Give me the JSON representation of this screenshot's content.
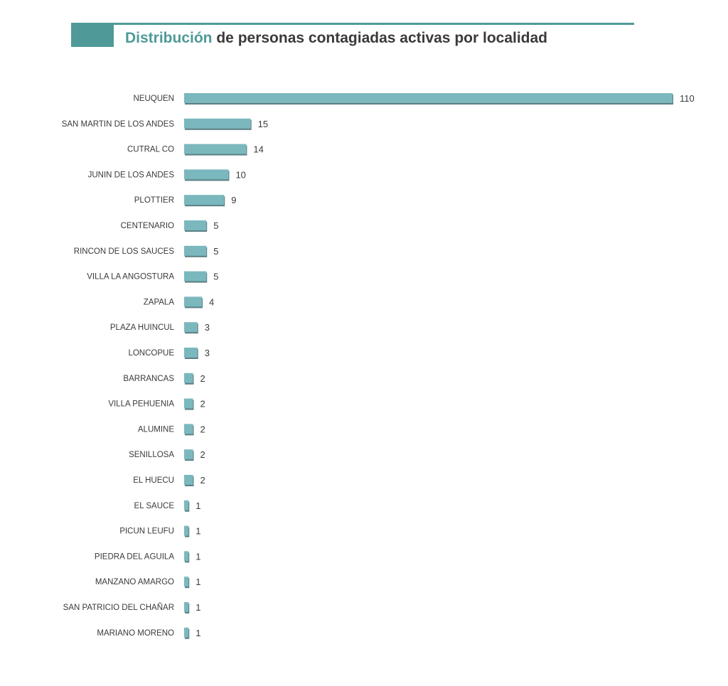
{
  "header": {
    "title_accent": "Distribución",
    "title_rest": " de personas contagiadas activas por localidad"
  },
  "colors": {
    "bar": "#7ab8be",
    "bar_shadow": "#5b7f84",
    "accent": "#4f9a98"
  },
  "chart_data": {
    "type": "bar",
    "orientation": "horizontal",
    "title": "Distribución de personas contagiadas activas por localidad",
    "categories": [
      "NEUQUEN",
      "SAN MARTIN DE LOS ANDES",
      "CUTRAL CO",
      "JUNIN DE LOS ANDES",
      "PLOTTIER",
      "CENTENARIO",
      "RINCON DE LOS SAUCES",
      "VILLA LA ANGOSTURA",
      "ZAPALA",
      "PLAZA HUINCUL",
      "LONCOPUE",
      "BARRANCAS",
      "VILLA PEHUENIA",
      "ALUMINE",
      "SENILLOSA",
      "EL HUECU",
      "EL SAUCE",
      "PICUN LEUFU",
      "PIEDRA DEL AGUILA",
      "MANZANO AMARGO",
      "SAN PATRICIO DEL CHAÑAR",
      "MARIANO MORENO"
    ],
    "values": [
      110,
      15,
      14,
      10,
      9,
      5,
      5,
      5,
      4,
      3,
      3,
      2,
      2,
      2,
      2,
      2,
      1,
      1,
      1,
      1,
      1,
      1
    ],
    "xlim": [
      0,
      110
    ],
    "grid": false,
    "legend": "none",
    "data_labels": true
  }
}
